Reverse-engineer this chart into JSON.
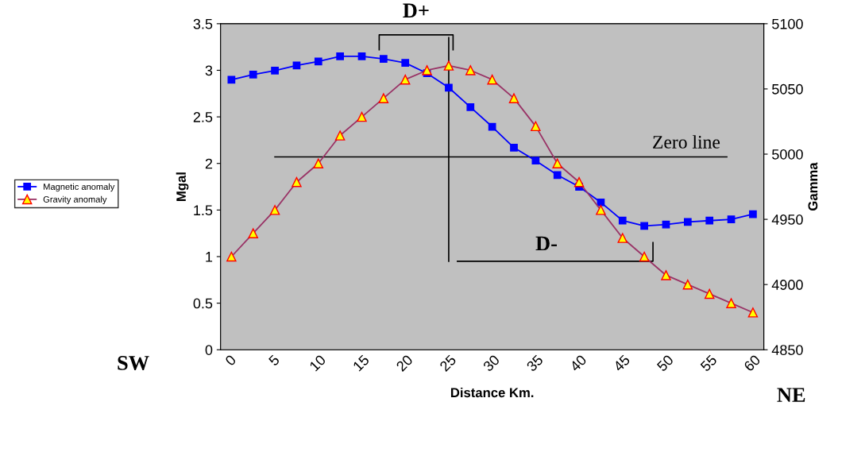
{
  "chart_data": {
    "type": "line",
    "xlabel": "Distance Km.",
    "ylabel": "Mgal",
    "y2label": "Gamma",
    "categories": [
      "0",
      null,
      "5",
      null,
      "10",
      null,
      "15",
      null,
      "20",
      null,
      "25",
      null,
      "30",
      null,
      "35",
      null,
      "40",
      null,
      "45",
      null,
      "50",
      null,
      "55",
      null,
      "60"
    ],
    "series": [
      {
        "name": "Magnetic anomaly",
        "color": "#0000ff",
        "marker": "square",
        "axis": "y2",
        "values": [
          5057,
          5061,
          5064,
          5068,
          5071,
          5075,
          5075,
          5073,
          5070,
          5062,
          5051,
          5036,
          5021,
          5005,
          4995,
          4984,
          4975,
          4963,
          4949,
          4945,
          4946,
          4948,
          4949,
          4950,
          4954
        ]
      },
      {
        "name": "Gravity anomaly",
        "color": "#993366",
        "marker": "triangle",
        "values": [
          1.0,
          1.25,
          1.5,
          1.8,
          2.0,
          2.3,
          2.5,
          2.7,
          2.9,
          3.0,
          3.05,
          3.0,
          2.9,
          2.7,
          2.4,
          2.0,
          1.8,
          1.5,
          1.2,
          1.0,
          0.8,
          0.7,
          0.6,
          0.5,
          0.4
        ]
      }
    ],
    "ylim": [
      0,
      3.5
    ],
    "yticks": [
      0,
      0.5,
      1,
      1.5,
      2,
      2.5,
      3,
      3.5
    ],
    "y2lim": [
      4850,
      5100
    ],
    "y2ticks": [
      4850,
      4900,
      4950,
      5000,
      5050,
      5100
    ],
    "ref_lines": [
      {
        "axis": "y",
        "value": 2.07,
        "label": "Zero line",
        "color": "#000000"
      },
      {
        "axis": "x",
        "value": "25",
        "color": "#000000"
      }
    ],
    "annotations": [
      "D+",
      "D-",
      "SW",
      "NE"
    ],
    "grid": false,
    "legend": "left"
  }
}
